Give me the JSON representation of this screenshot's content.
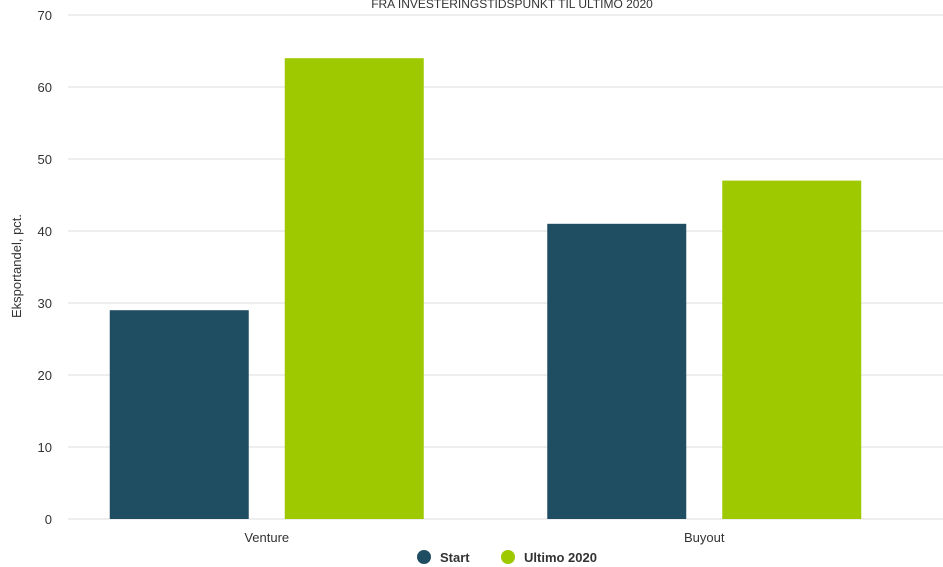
{
  "chart_data": {
    "type": "bar",
    "title": "FRA INVESTERINGSTIDSPUNKT TIL ULTIMO 2020",
    "xlabel": "",
    "ylabel": "Eksportandel, pct.",
    "categories": [
      "Venture",
      "Buyout"
    ],
    "series": [
      {
        "name": "Start",
        "values": [
          29,
          41
        ],
        "color": "#1f4e63"
      },
      {
        "name": "Ultimo 2020",
        "values": [
          64,
          47
        ],
        "color": "#9ec800"
      }
    ],
    "ylim": [
      0,
      70
    ],
    "yticks": [
      0,
      10,
      20,
      30,
      40,
      50,
      60,
      70
    ],
    "grid": true,
    "legend": "bottom-center"
  }
}
